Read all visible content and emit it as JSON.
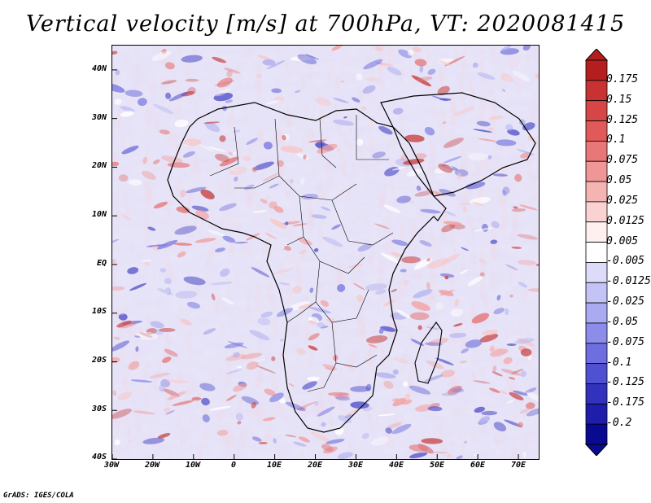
{
  "title": "Vertical velocity [m/s] at 700hPa, VT: 2020081415",
  "credit": "GrADS: IGES/COLA",
  "map": {
    "lon_range": [
      -30,
      75
    ],
    "lat_range": [
      -40,
      45
    ],
    "lat_labels": [
      "40N",
      "30N",
      "20N",
      "10N",
      "EQ",
      "10S",
      "20S",
      "30S",
      "40S"
    ],
    "lat_values": [
      40,
      30,
      20,
      10,
      0,
      -10,
      -20,
      -30,
      -40
    ],
    "lon_labels": [
      "30W",
      "20W",
      "10W",
      "0",
      "10E",
      "20E",
      "30E",
      "40E",
      "50E",
      "60E",
      "70E"
    ],
    "lon_values": [
      -30,
      -20,
      -10,
      0,
      10,
      20,
      30,
      40,
      50,
      60,
      70
    ]
  },
  "colorbar": {
    "labels": [
      "0.175",
      "0.15",
      "0.125",
      "0.1",
      "0.075",
      "0.05",
      "0.025",
      "0.0125",
      "0.005",
      "-0.005",
      "-0.0125",
      "-0.025",
      "-0.05",
      "-0.075",
      "-0.1",
      "-0.125",
      "-0.175",
      "-0.2"
    ],
    "colors": [
      "#b41e1e",
      "#c83232",
      "#d74646",
      "#e05a5a",
      "#e87878",
      "#f09696",
      "#f5b4b4",
      "#fad2d2",
      "#fff0f0",
      "#ffffff",
      "#dcdcfa",
      "#c3c3f5",
      "#aaaaf0",
      "#8c8ceb",
      "#6e6ee1",
      "#5050d2",
      "#3232be",
      "#1e1eaa",
      "#0a0a91"
    ]
  }
}
